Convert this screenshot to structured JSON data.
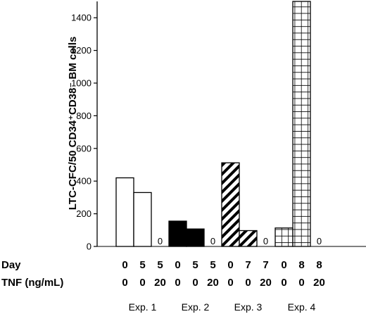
{
  "chart_data": {
    "type": "bar",
    "ylabel": "LTC-CFC/50 CD34⁺CD38⁻ BM cells",
    "ylim": [
      0,
      1500
    ],
    "yticks": [
      0,
      200,
      400,
      600,
      800,
      1000,
      1200,
      1400
    ],
    "row_labels": {
      "day": "Day",
      "tnf": "TNF (ng/mL)"
    },
    "zero_label": "0",
    "groups": [
      {
        "label": "Exp. 1",
        "pattern": "open",
        "bars": [
          {
            "day": "0",
            "tnf": "0",
            "value": 420
          },
          {
            "day": "5",
            "tnf": "0",
            "value": 330
          },
          {
            "day": "5",
            "tnf": "20",
            "value": 0
          }
        ]
      },
      {
        "label": "Exp. 2",
        "pattern": "solid",
        "bars": [
          {
            "day": "0",
            "tnf": "0",
            "value": 155
          },
          {
            "day": "5",
            "tnf": "0",
            "value": 107
          },
          {
            "day": "5",
            "tnf": "20",
            "value": 0
          }
        ]
      },
      {
        "label": "Exp. 3",
        "pattern": "hatched",
        "bars": [
          {
            "day": "0",
            "tnf": "0",
            "value": 512
          },
          {
            "day": "7",
            "tnf": "0",
            "value": 97
          },
          {
            "day": "7",
            "tnf": "20",
            "value": 0
          }
        ]
      },
      {
        "label": "Exp. 4",
        "pattern": "grid",
        "bars": [
          {
            "day": "0",
            "tnf": "0",
            "value": 113
          },
          {
            "day": "8",
            "tnf": "0",
            "value": 1500
          },
          {
            "day": "8",
            "tnf": "20",
            "value": 0
          }
        ]
      }
    ]
  }
}
